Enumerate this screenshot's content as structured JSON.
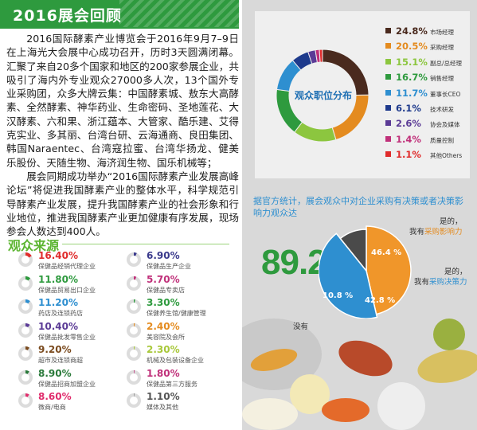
{
  "header": {
    "title": "2016展会回顾"
  },
  "intro": {
    "p1": "2016国际酵素产业博览会于2016年9月7–9日在上海光大会展中心成功召开，历时3天圆满闭幕。汇聚了来自20多个国家和地区的200家参展企业，共吸引了海内外专业观众27000多人次，13个国外专业采购团，众多大牌云集：中国酵素城、敖东大高酵素、全然酵素、神华药业、生命密码、圣地莲花、大汉酵素、六和果、浙江蕴本、大管家、酷乐建、艾得克实业、多其丽、台湾台研、云海通商、良田集团、韩国Naraentec、台湾寇拉蜜、台湾华扬龙、健美乐股份、天随生物、海济润生物、国乐机械等；",
    "p2": "展会同期成功举办“2016国际酵素产业发展高峰论坛”将促进我国酵素产业的整体水平，科学规范引导酵素产业发展，提升我国酵素产业的社会形象和行业地位，推进我国酵素产业更加健康有序发展，现场参会人数达到400人。"
  },
  "source": {
    "title": "观众来源",
    "items": [
      {
        "pct": "16.40%",
        "label": "保健品经销代理企业",
        "value": 16.4,
        "color": "#e02c2c"
      },
      {
        "pct": "6.90%",
        "label": "保健品生产企业",
        "value": 6.9,
        "color": "#3a3a8c"
      },
      {
        "pct": "11.80%",
        "label": "保健品贸易出口企业",
        "value": 11.8,
        "color": "#2e9a3e"
      },
      {
        "pct": "5.70%",
        "label": "保健品专卖店",
        "value": 5.7,
        "color": "#c0307a"
      },
      {
        "pct": "11.20%",
        "label": "药店及连锁药店",
        "value": 11.2,
        "color": "#2e8fd0"
      },
      {
        "pct": "3.30%",
        "label": "保健养生馆/健康管理",
        "value": 3.3,
        "color": "#2e9a3e"
      },
      {
        "pct": "10.40%",
        "label": "保健品批发零售企业",
        "value": 10.4,
        "color": "#5b3b96"
      },
      {
        "pct": "2.40%",
        "label": "美容院及会所",
        "value": 2.4,
        "color": "#e48b1f"
      },
      {
        "pct": "9.20%",
        "label": "超市及连锁商超",
        "value": 9.2,
        "color": "#7a4a1e"
      },
      {
        "pct": "2.30%",
        "label": "机械及包装设备企业",
        "value": 2.3,
        "color": "#a8c83a"
      },
      {
        "pct": "8.90%",
        "label": "保健品招商加盟企业",
        "value": 8.9,
        "color": "#2a7a3a"
      },
      {
        "pct": "1.80%",
        "label": "保健品第三方服务",
        "value": 1.8,
        "color": "#c0307a"
      },
      {
        "pct": "8.60%",
        "label": "微商/电商",
        "value": 8.6,
        "color": "#e02c6c"
      },
      {
        "pct": "1.10%",
        "label": "媒体及其他",
        "value": 1.1,
        "color": "#555555"
      }
    ]
  },
  "positions": {
    "label": "观众职位分布",
    "items": [
      {
        "pct": "24.8%",
        "label": "市场经理",
        "value": 24.8,
        "color": "#4a2a1e"
      },
      {
        "pct": "20.5%",
        "label": "采购经理",
        "value": 20.5,
        "color": "#e48b1f"
      },
      {
        "pct": "15.1%",
        "label": "副总/总经理",
        "value": 15.1,
        "color": "#8cc63f"
      },
      {
        "pct": "16.7%",
        "label": "销售经理",
        "value": 16.7,
        "color": "#2e9a3e"
      },
      {
        "pct": "11.7%",
        "label": "董事长CEO",
        "value": 11.7,
        "color": "#2e8fd0"
      },
      {
        "pct": "6.1%",
        "label": "技术研发",
        "value": 6.1,
        "color": "#1e3a8c"
      },
      {
        "pct": "2.6%",
        "label": "协会及媒体",
        "value": 2.6,
        "color": "#5b3b96"
      },
      {
        "pct": "1.4%",
        "label": "质量控制",
        "value": 1.4,
        "color": "#c0307a"
      },
      {
        "pct": "1.1%",
        "label": "其他Others",
        "value": 1.1,
        "color": "#e02c2c"
      }
    ]
  },
  "purchase": {
    "question": "据官方统计，展会观众中对企业采购有决策或者决策影响力观众达",
    "big": "89.2%",
    "slices": [
      {
        "pct": "46.4 %",
        "value": 46.4,
        "color": "#f0962a"
      },
      {
        "pct": "42.8 %",
        "value": 42.8,
        "color": "#2e8fd0"
      },
      {
        "pct": "10.8 %",
        "value": 10.8,
        "color": "#4a4a4a"
      }
    ],
    "note_influence_a": "是的，",
    "note_influence_b": "我有",
    "note_influence_c": "采购影响力",
    "note_decision_a": "是的，",
    "note_decision_b": "我有",
    "note_decision_c": "采购决策力",
    "note_no": "没有"
  }
}
